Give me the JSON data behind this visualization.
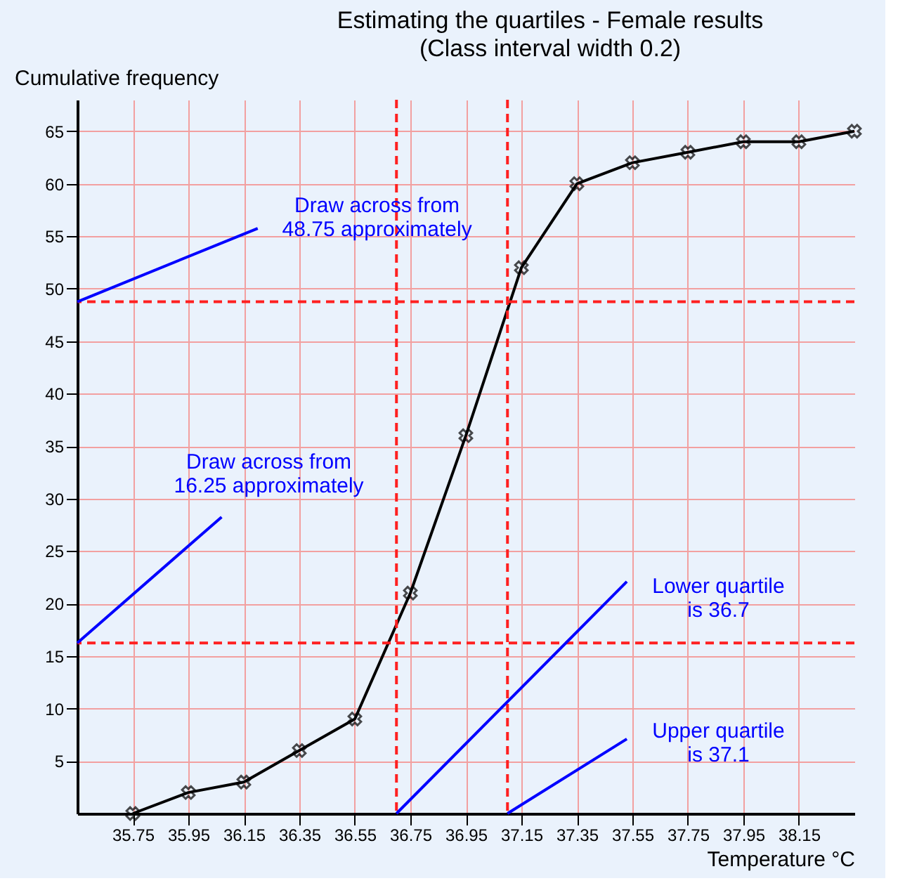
{
  "chart_data": {
    "type": "line",
    "title": "Estimating the quartiles - Female results",
    "subtitle": "(Class interval width 0.2)",
    "xlabel": "Temperature °C",
    "ylabel": "Cumulative frequency",
    "x": [
      35.75,
      35.95,
      36.15,
      36.35,
      36.55,
      36.75,
      36.95,
      37.15,
      37.35,
      37.55,
      37.75,
      37.95,
      38.15,
      38.35
    ],
    "series": [
      {
        "color": "#000000",
        "values": [
          0,
          2,
          3,
          6,
          9,
          21,
          36,
          52,
          60,
          62,
          63,
          64,
          64,
          65
        ]
      }
    ],
    "xlim": [
      35.55,
      38.35
    ],
    "ylim": [
      0,
      68
    ],
    "xticks": [
      35.75,
      35.95,
      36.15,
      36.35,
      36.55,
      36.75,
      36.95,
      37.15,
      37.35,
      37.55,
      37.75,
      37.95,
      38.15
    ],
    "yticks": [
      5,
      10,
      15,
      20,
      25,
      30,
      35,
      40,
      45,
      50,
      55,
      60,
      65
    ],
    "marker": "cross",
    "line_style": "solid",
    "grid": true,
    "ref_lines": [
      {
        "axis": "y",
        "value": 48.75,
        "color": "#ff2020",
        "line_style": "dashed"
      },
      {
        "axis": "y",
        "value": 16.25,
        "color": "#ff2020",
        "line_style": "dashed"
      },
      {
        "axis": "x",
        "value": 36.7,
        "color": "#ff2020",
        "line_style": "dashed"
      },
      {
        "axis": "x",
        "value": 37.1,
        "color": "#ff2020",
        "line_style": "dashed"
      }
    ],
    "annotations": [
      {
        "text": "Draw across from\n48.75 approximately",
        "x": 35.55,
        "y": 48.75
      },
      {
        "text": "Draw across from\n16.25 approximately",
        "x": 35.55,
        "y": 16.25
      },
      {
        "text": "Lower quartile\nis 36.7",
        "x": 36.7,
        "y": 0
      },
      {
        "text": "Upper quartile\nis 37.1",
        "x": 37.1,
        "y": 0
      }
    ]
  }
}
